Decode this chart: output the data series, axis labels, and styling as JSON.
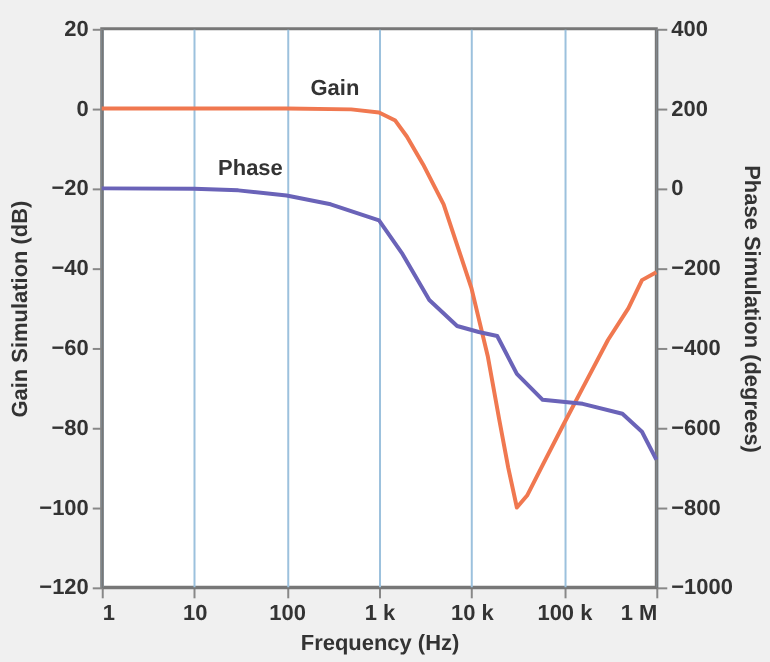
{
  "chart_data": {
    "type": "line",
    "xlabel": "Frequency (Hz)",
    "ylabel": "Gain Simulation (dB)",
    "y2label": "Phase Simulation (degrees)",
    "log": "x",
    "grid": "x",
    "legend": false,
    "marker": "none",
    "line_style": "solid",
    "xlim": [
      1,
      1000000
    ],
    "xticks": [
      1,
      10,
      100,
      {
        "value": 1000,
        "label": "1 k"
      },
      {
        "value": 10000,
        "label": "10 k"
      },
      {
        "value": 100000,
        "label": "100 k"
      },
      {
        "value": 1000000,
        "label": "1 M"
      }
    ],
    "ylim": [
      -120,
      20
    ],
    "yticks": [
      -120,
      -100,
      -80,
      -60,
      -40,
      -20,
      0,
      20
    ],
    "y2lim": [
      -1000,
      400
    ],
    "y2ticks": [
      -1000,
      -800,
      -600,
      -400,
      -200,
      0,
      200,
      400
    ],
    "series": [
      {
        "name": "Gain",
        "color": "#f07850",
        "x": [
          1,
          100,
          500,
          1000,
          1500,
          2000,
          3000,
          5000,
          10000,
          15000,
          20000,
          25000,
          31000,
          40000,
          60000,
          100000,
          160000,
          300000,
          500000,
          700000,
          1000000
        ],
        "values": [
          0,
          0,
          -0.2,
          -1,
          -3,
          -7,
          -14,
          -24,
          -45,
          -62,
          -78,
          -90,
          -100,
          -97,
          -89,
          -79,
          -70,
          -58,
          -50,
          -43,
          -41
        ]
      },
      {
        "name": "Phase",
        "color": "#6a63b8",
        "axis": "y2",
        "x": [
          1,
          10,
          30,
          100,
          300,
          1000,
          1800,
          3500,
          7000,
          12000,
          19000,
          31000,
          59000,
          160000,
          430000,
          700000,
          1000000
        ],
        "values": [
          0,
          -1,
          -5,
          -18,
          -40,
          -80,
          -165,
          -280,
          -345,
          -360,
          -370,
          -465,
          -530,
          -540,
          -565,
          -610,
          -680
        ]
      }
    ]
  }
}
